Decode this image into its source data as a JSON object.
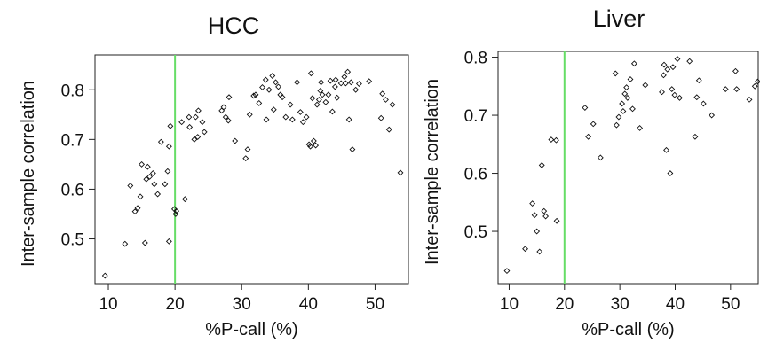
{
  "chart_data": [
    {
      "type": "scatter",
      "title": "HCC",
      "xlabel": "%P-call (%)",
      "ylabel": "Inter-sample correlation",
      "xlim": [
        8,
        55
      ],
      "ylim": [
        0.41,
        0.87
      ],
      "xticks": [
        10,
        20,
        30,
        40,
        50
      ],
      "yticks": [
        0.5,
        0.6,
        0.7,
        0.8
      ],
      "xtick_labels": [
        "10",
        "20",
        "30",
        "40",
        "50"
      ],
      "ytick_labels": [
        "0.5",
        "0.6",
        "0.7",
        "0.8"
      ],
      "grid": false,
      "marker": "diamond",
      "vline": {
        "x": 20,
        "color": "#66dd66"
      },
      "points": [
        [
          9.5,
          0.426
        ],
        [
          12.5,
          0.49
        ],
        [
          13.3,
          0.607
        ],
        [
          14,
          0.555
        ],
        [
          14.4,
          0.562
        ],
        [
          14.8,
          0.585
        ],
        [
          15,
          0.65
        ],
        [
          15.5,
          0.492
        ],
        [
          15.7,
          0.62
        ],
        [
          15.9,
          0.645
        ],
        [
          16.2,
          0.625
        ],
        [
          16.7,
          0.632
        ],
        [
          16.9,
          0.61
        ],
        [
          17.4,
          0.59
        ],
        [
          17.9,
          0.695
        ],
        [
          18.5,
          0.61
        ],
        [
          18.9,
          0.636
        ],
        [
          19.1,
          0.686
        ],
        [
          19.1,
          0.495
        ],
        [
          19.3,
          0.727
        ],
        [
          19.9,
          0.56
        ],
        [
          20.1,
          0.55
        ],
        [
          20.2,
          0.556
        ],
        [
          21,
          0.735
        ],
        [
          21.5,
          0.58
        ],
        [
          22.1,
          0.745
        ],
        [
          22.2,
          0.725
        ],
        [
          22.9,
          0.7
        ],
        [
          23.1,
          0.745
        ],
        [
          23.4,
          0.705
        ],
        [
          23.5,
          0.758
        ],
        [
          24.1,
          0.735
        ],
        [
          24.4,
          0.715
        ],
        [
          27,
          0.758
        ],
        [
          27.3,
          0.765
        ],
        [
          27.6,
          0.745
        ],
        [
          28,
          0.738
        ],
        [
          28.1,
          0.785
        ],
        [
          29,
          0.697
        ],
        [
          30.6,
          0.662
        ],
        [
          30.9,
          0.68
        ],
        [
          31.2,
          0.75
        ],
        [
          31.8,
          0.788
        ],
        [
          32.1,
          0.79
        ],
        [
          32.6,
          0.773
        ],
        [
          33.1,
          0.805
        ],
        [
          33.6,
          0.82
        ],
        [
          33.7,
          0.74
        ],
        [
          34.1,
          0.8
        ],
        [
          34.6,
          0.828
        ],
        [
          34.8,
          0.76
        ],
        [
          35.1,
          0.815
        ],
        [
          35.5,
          0.806
        ],
        [
          35.8,
          0.79
        ],
        [
          36.1,
          0.785
        ],
        [
          36.6,
          0.745
        ],
        [
          37.3,
          0.77
        ],
        [
          37.6,
          0.74
        ],
        [
          38.3,
          0.815
        ],
        [
          38.8,
          0.755
        ],
        [
          39.2,
          0.735
        ],
        [
          39.7,
          0.745
        ],
        [
          40.1,
          0.69
        ],
        [
          40.3,
          0.686
        ],
        [
          40.4,
          0.833
        ],
        [
          40.6,
          0.783
        ],
        [
          40.8,
          0.697
        ],
        [
          41.1,
          0.688
        ],
        [
          41.3,
          0.77
        ],
        [
          41.6,
          0.78
        ],
        [
          41.8,
          0.798
        ],
        [
          41.9,
          0.815
        ],
        [
          42.1,
          0.79
        ],
        [
          42.6,
          0.775
        ],
        [
          43,
          0.79
        ],
        [
          43.3,
          0.818
        ],
        [
          43.6,
          0.756
        ],
        [
          44,
          0.806
        ],
        [
          44.1,
          0.82
        ],
        [
          44.3,
          0.784
        ],
        [
          44.9,
          0.813
        ],
        [
          45.4,
          0.826
        ],
        [
          45.6,
          0.813
        ],
        [
          45.9,
          0.836
        ],
        [
          46.1,
          0.74
        ],
        [
          46.4,
          0.815
        ],
        [
          46.6,
          0.68
        ],
        [
          47.1,
          0.8
        ],
        [
          47.6,
          0.812
        ],
        [
          49.1,
          0.817
        ],
        [
          50.9,
          0.743
        ],
        [
          51.1,
          0.792
        ],
        [
          51.6,
          0.78
        ],
        [
          52.1,
          0.72
        ],
        [
          52.6,
          0.77
        ],
        [
          53.8,
          0.633
        ]
      ]
    },
    {
      "type": "scatter",
      "title": "Liver",
      "xlabel": "%P-call (%)",
      "ylabel": "Inter-sample correlation",
      "xlim": [
        8,
        55
      ],
      "ylim": [
        0.41,
        0.81
      ],
      "xticks": [
        10,
        20,
        30,
        40,
        50
      ],
      "yticks": [
        0.5,
        0.6,
        0.7,
        0.8
      ],
      "xtick_labels": [
        "10",
        "20",
        "30",
        "40",
        "50"
      ],
      "ytick_labels": [
        "0.5",
        "0.6",
        "0.7",
        "0.8"
      ],
      "grid": false,
      "marker": "diamond",
      "vline": {
        "x": 20,
        "color": "#66dd66"
      },
      "points": [
        [
          9.6,
          0.432
        ],
        [
          12.9,
          0.47
        ],
        [
          14.2,
          0.548
        ],
        [
          14.6,
          0.528
        ],
        [
          15,
          0.5
        ],
        [
          15.5,
          0.465
        ],
        [
          15.9,
          0.614
        ],
        [
          16.3,
          0.535
        ],
        [
          16.6,
          0.526
        ],
        [
          17.6,
          0.658
        ],
        [
          18.5,
          0.657
        ],
        [
          18.6,
          0.518
        ],
        [
          23.7,
          0.713
        ],
        [
          24.3,
          0.663
        ],
        [
          25.2,
          0.685
        ],
        [
          26.5,
          0.627
        ],
        [
          29.2,
          0.772
        ],
        [
          29.4,
          0.683
        ],
        [
          29.8,
          0.697
        ],
        [
          30.4,
          0.72
        ],
        [
          30.6,
          0.707
        ],
        [
          30.9,
          0.737
        ],
        [
          31.2,
          0.748
        ],
        [
          31.4,
          0.73
        ],
        [
          31.9,
          0.762
        ],
        [
          32.3,
          0.711
        ],
        [
          32.6,
          0.789
        ],
        [
          33.6,
          0.678
        ],
        [
          34.6,
          0.752
        ],
        [
          37.6,
          0.74
        ],
        [
          37.9,
          0.769
        ],
        [
          38,
          0.787
        ],
        [
          38.4,
          0.64
        ],
        [
          38.6,
          0.779
        ],
        [
          39.1,
          0.6
        ],
        [
          39.4,
          0.745
        ],
        [
          39.6,
          0.783
        ],
        [
          39.9,
          0.735
        ],
        [
          40.4,
          0.797
        ],
        [
          40.8,
          0.73
        ],
        [
          42.6,
          0.793
        ],
        [
          43.6,
          0.663
        ],
        [
          43.9,
          0.731
        ],
        [
          44.3,
          0.76
        ],
        [
          45.1,
          0.72
        ],
        [
          46.6,
          0.7
        ],
        [
          49.1,
          0.745
        ],
        [
          50.9,
          0.776
        ],
        [
          51.1,
          0.745
        ],
        [
          53.4,
          0.727
        ],
        [
          54.4,
          0.75
        ],
        [
          54.9,
          0.758
        ]
      ]
    }
  ]
}
